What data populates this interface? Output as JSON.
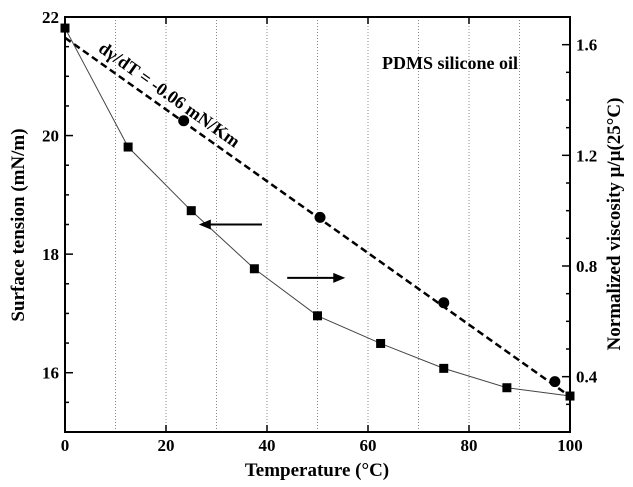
{
  "chart_data": {
    "type": "line",
    "annotation": "PDMS silicone oil",
    "fit_label": "dγ/dT = -0.06 mN/Km",
    "xlabel": "Temperature (°C)",
    "ylabel_left": "Surface tension (mN/m)",
    "ylabel_right": "Normalized viscosity μ/μ(25°C)",
    "xlim": [
      0,
      100
    ],
    "ylim_left": [
      15.0,
      22.0
    ],
    "ylim_right": [
      0.2,
      1.7
    ],
    "x_ticks": [
      "0",
      "20",
      "40",
      "60",
      "80",
      "100"
    ],
    "x_tick_values": [
      0,
      20,
      40,
      60,
      80,
      100
    ],
    "y_left_ticks": [
      "16",
      "18",
      "20",
      "22"
    ],
    "y_left_tick_values": [
      16,
      18,
      20,
      22
    ],
    "y_right_ticks": [
      "0.4",
      "0.8",
      "1.2",
      "1.6"
    ],
    "y_right_tick_values": [
      0.4,
      0.8,
      1.2,
      1.6
    ],
    "grid_x": [
      10,
      20,
      30,
      40,
      50,
      60,
      70,
      80,
      90
    ],
    "grid": "vertical dotted",
    "series": [
      {
        "axis": "left",
        "marker": "circle",
        "x": [
          23.5,
          50.5,
          75,
          97
        ],
        "y": [
          20.25,
          18.62,
          17.18,
          15.85
        ]
      },
      {
        "axis": "left",
        "line": "dashed",
        "x": [
          0,
          100
        ],
        "y": [
          21.65,
          15.6
        ]
      },
      {
        "axis": "right",
        "marker": "square",
        "x": [
          0,
          12.5,
          25,
          37.5,
          50,
          62.5,
          75,
          87.5,
          100
        ],
        "y": [
          1.66,
          1.23,
          1.0,
          0.79,
          0.62,
          0.52,
          0.43,
          0.36,
          0.33
        ]
      }
    ],
    "arrows": [
      {
        "direction": "left",
        "x_from": 39,
        "x_to": 26.5,
        "y": 18.5
      },
      {
        "direction": "right",
        "x_from": 44,
        "x_to": 55.5,
        "y": 17.6
      }
    ]
  }
}
